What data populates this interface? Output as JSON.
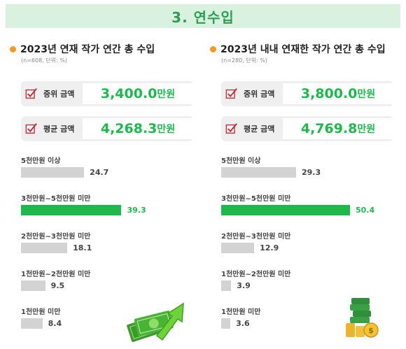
{
  "header": {
    "title": "3. 연수입"
  },
  "panels": [
    {
      "title": "2023년 연재 작가 연간 총 수입",
      "note": "(n=608, 단위: %)",
      "median": {
        "label": "중위 금액",
        "value": "3,400.0",
        "unit": "만원"
      },
      "mean": {
        "label": "평균 금액",
        "value": "4,268.3",
        "unit": "만원"
      },
      "illustration_icon": "money-arrow-icon"
    },
    {
      "title": "2023년 내내 연재한 작가 연간 총 수입",
      "note": "(n=280, 단위: %)",
      "median": {
        "label": "중위 금액",
        "value": "3,800.0",
        "unit": "만원"
      },
      "mean": {
        "label": "평균 금액",
        "value": "4,769.8",
        "unit": "만원"
      },
      "illustration_icon": "coin-stack-icon"
    }
  ],
  "colors": {
    "accent": "#1fb84d",
    "bar": "#d3d3d3",
    "dot": "#f39a21",
    "banner": "#d8f2df"
  },
  "chart_data": [
    {
      "type": "bar",
      "orientation": "horizontal",
      "title": "2023년 연재 작가 연간 총 수입",
      "categories": [
        "5천만원 이상",
        "3천만원~5천만원 미만",
        "2천만원~3천만원 미만",
        "1천만원~2천만원 미만",
        "1천만원 미만"
      ],
      "values": [
        24.7,
        39.3,
        18.1,
        9.5,
        8.4
      ],
      "value_labels": [
        "24.7",
        "39.3",
        "18.1",
        "9.5",
        "8.4"
      ],
      "highlight_index": 1,
      "xlim": [
        0,
        50
      ]
    },
    {
      "type": "bar",
      "orientation": "horizontal",
      "title": "2023년 내내 연재한 작가 연간 총 수입",
      "categories": [
        "5천만원 이상",
        "3천만원~5천만원 미만",
        "2천만원~3천만원 미만",
        "1천만원~2천만원 미만",
        "1천만원 미만"
      ],
      "values": [
        29.3,
        50.4,
        12.9,
        3.9,
        3.6
      ],
      "value_labels": [
        "29.3",
        "50.4",
        "12.9",
        "3.9",
        "3.6"
      ],
      "highlight_index": 1,
      "xlim": [
        0,
        50
      ]
    }
  ]
}
